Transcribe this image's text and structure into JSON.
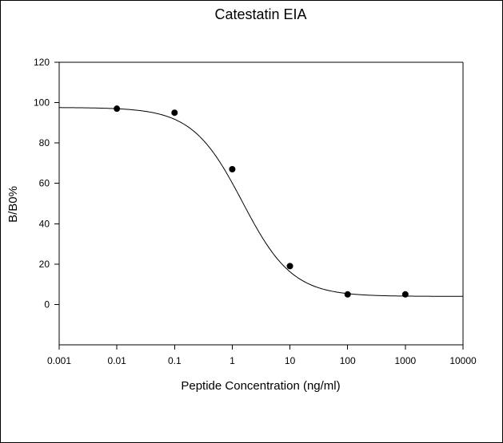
{
  "chart_data": {
    "type": "scatter",
    "title": "Catestatin EIA",
    "xlabel": "Peptide Concentration (ng/ml)",
    "ylabel": "B/B0%",
    "xscale": "log",
    "xlim": [
      0.001,
      10000
    ],
    "ylim": [
      -20,
      120
    ],
    "xticks": [
      "0.001",
      "0.01",
      "0.1",
      "1",
      "10",
      "100",
      "1000",
      "10000"
    ],
    "yticks": [
      "0",
      "20",
      "40",
      "60",
      "80",
      "100",
      "120"
    ],
    "grid": false,
    "legend": "none",
    "series": [
      {
        "x": [
          0.01,
          0.1,
          1,
          10,
          100,
          1000
        ],
        "y": [
          97,
          95,
          67,
          19,
          5,
          5
        ],
        "marker": "filled-circle",
        "color": "#000000"
      }
    ],
    "fit_curve": {
      "type": "4-parameter logistic",
      "top": 97.6,
      "bottom": 4.0,
      "ec50": 1.5,
      "hill": 1.0,
      "color": "#000000"
    }
  }
}
